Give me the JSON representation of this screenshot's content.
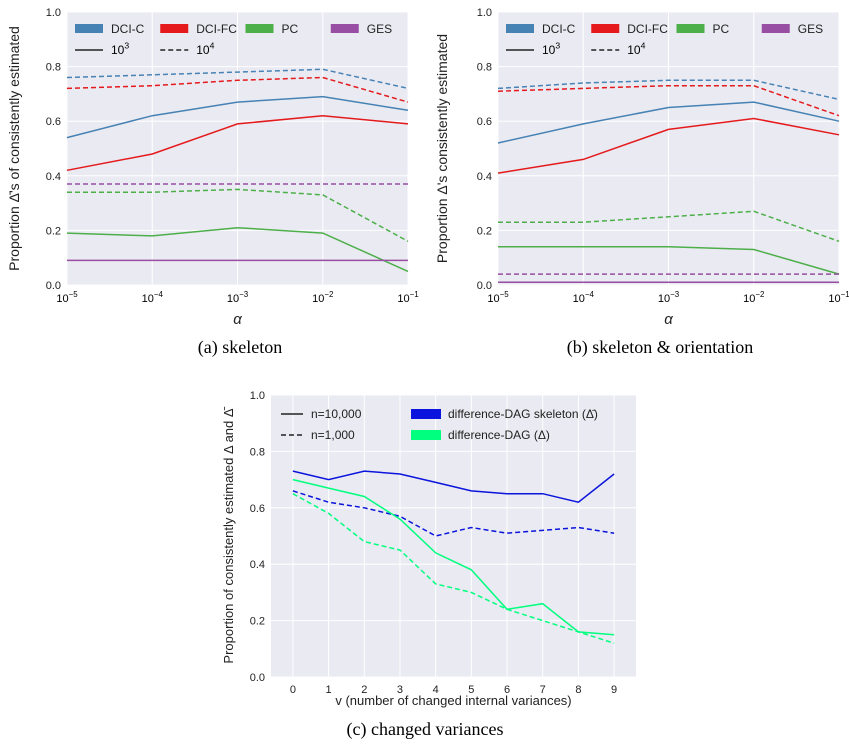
{
  "chart_data": [
    {
      "type": "line",
      "caption": "(a)  skeleton",
      "xlabel": "α",
      "ylabel": "Proportion Δ̄'s of consistently estimated",
      "x_scale": "log",
      "x": [
        1e-05,
        0.0001,
        0.001,
        0.01,
        0.1
      ],
      "xticks": [
        {
          "base": "10",
          "exp": "−5"
        },
        {
          "base": "10",
          "exp": "−4"
        },
        {
          "base": "10",
          "exp": "−3"
        },
        {
          "base": "10",
          "exp": "−2"
        },
        {
          "base": "10",
          "exp": "−1"
        }
      ],
      "ylim": [
        0,
        1
      ],
      "yticks": [
        "0.0",
        "0.2",
        "0.4",
        "0.6",
        "0.8",
        "1.0"
      ],
      "grid": true,
      "legend_position": "top",
      "legend": {
        "methods": [
          {
            "name": "DCI-C",
            "color": "#4682b4"
          },
          {
            "name": "DCI-FC",
            "color": "#e41a1c"
          },
          {
            "name": "PC",
            "color": "#4daf4a"
          },
          {
            "name": "GES",
            "color": "#984ea3"
          }
        ],
        "styles": [
          {
            "base": "10",
            "exp": "3",
            "dash": "solid"
          },
          {
            "base": "10",
            "exp": "4",
            "dash": "dashed"
          }
        ]
      },
      "series": [
        {
          "method": "DCI-C",
          "samples": "10^3",
          "dash": "solid",
          "color": "#4682b4",
          "values": [
            0.54,
            0.62,
            0.67,
            0.69,
            0.64
          ]
        },
        {
          "method": "DCI-C",
          "samples": "10^4",
          "dash": "dashed",
          "color": "#4682b4",
          "values": [
            0.76,
            0.77,
            0.78,
            0.79,
            0.72
          ]
        },
        {
          "method": "DCI-FC",
          "samples": "10^3",
          "dash": "solid",
          "color": "#e41a1c",
          "values": [
            0.42,
            0.48,
            0.59,
            0.62,
            0.59
          ]
        },
        {
          "method": "DCI-FC",
          "samples": "10^4",
          "dash": "dashed",
          "color": "#e41a1c",
          "values": [
            0.72,
            0.73,
            0.75,
            0.76,
            0.67
          ]
        },
        {
          "method": "PC",
          "samples": "10^3",
          "dash": "solid",
          "color": "#4daf4a",
          "values": [
            0.19,
            0.18,
            0.21,
            0.19,
            0.05
          ]
        },
        {
          "method": "PC",
          "samples": "10^4",
          "dash": "dashed",
          "color": "#4daf4a",
          "values": [
            0.34,
            0.34,
            0.35,
            0.33,
            0.16
          ]
        },
        {
          "method": "GES",
          "samples": "10^3",
          "dash": "solid",
          "color": "#984ea3",
          "values": [
            0.09,
            0.09,
            0.09,
            0.09,
            0.09
          ]
        },
        {
          "method": "GES",
          "samples": "10^4",
          "dash": "dashed",
          "color": "#984ea3",
          "values": [
            0.37,
            0.37,
            0.37,
            0.37,
            0.37
          ]
        }
      ]
    },
    {
      "type": "line",
      "caption": "(b)  skeleton & orientation",
      "xlabel": "α",
      "ylabel": "Proportion Δ's consistently estimated",
      "x_scale": "log",
      "x": [
        1e-05,
        0.0001,
        0.001,
        0.01,
        0.1
      ],
      "xticks": [
        {
          "base": "10",
          "exp": "−5"
        },
        {
          "base": "10",
          "exp": "−4"
        },
        {
          "base": "10",
          "exp": "−3"
        },
        {
          "base": "10",
          "exp": "−2"
        },
        {
          "base": "10",
          "exp": "−1"
        }
      ],
      "ylim": [
        0,
        1
      ],
      "yticks": [
        "0.0",
        "0.2",
        "0.4",
        "0.6",
        "0.8",
        "1.0"
      ],
      "grid": true,
      "legend_position": "top",
      "legend": {
        "methods": [
          {
            "name": "DCI-C",
            "color": "#4682b4"
          },
          {
            "name": "DCI-FC",
            "color": "#e41a1c"
          },
          {
            "name": "PC",
            "color": "#4daf4a"
          },
          {
            "name": "GES",
            "color": "#984ea3"
          }
        ],
        "styles": [
          {
            "base": "10",
            "exp": "3",
            "dash": "solid"
          },
          {
            "base": "10",
            "exp": "4",
            "dash": "dashed"
          }
        ]
      },
      "series": [
        {
          "method": "DCI-C",
          "samples": "10^3",
          "dash": "solid",
          "color": "#4682b4",
          "values": [
            0.52,
            0.59,
            0.65,
            0.67,
            0.6
          ]
        },
        {
          "method": "DCI-C",
          "samples": "10^4",
          "dash": "dashed",
          "color": "#4682b4",
          "values": [
            0.72,
            0.74,
            0.75,
            0.75,
            0.68
          ]
        },
        {
          "method": "DCI-FC",
          "samples": "10^3",
          "dash": "solid",
          "color": "#e41a1c",
          "values": [
            0.41,
            0.46,
            0.57,
            0.61,
            0.55
          ]
        },
        {
          "method": "DCI-FC",
          "samples": "10^4",
          "dash": "dashed",
          "color": "#e41a1c",
          "values": [
            0.71,
            0.72,
            0.73,
            0.73,
            0.62
          ]
        },
        {
          "method": "PC",
          "samples": "10^3",
          "dash": "solid",
          "color": "#4daf4a",
          "values": [
            0.14,
            0.14,
            0.14,
            0.13,
            0.04
          ]
        },
        {
          "method": "PC",
          "samples": "10^4",
          "dash": "dashed",
          "color": "#4daf4a",
          "values": [
            0.23,
            0.23,
            0.25,
            0.27,
            0.16
          ]
        },
        {
          "method": "GES",
          "samples": "10^3",
          "dash": "solid",
          "color": "#984ea3",
          "values": [
            0.01,
            0.01,
            0.01,
            0.01,
            0.01
          ]
        },
        {
          "method": "GES",
          "samples": "10^4",
          "dash": "dashed",
          "color": "#984ea3",
          "values": [
            0.04,
            0.04,
            0.04,
            0.04,
            0.04
          ]
        }
      ]
    },
    {
      "type": "line",
      "caption": "(c)  changed variances",
      "xlabel": "v (number of changed internal variances)",
      "ylabel": "Proportion of consistently estimated Δ and Δ̄",
      "x": [
        0,
        1,
        2,
        3,
        4,
        5,
        6,
        7,
        8,
        9
      ],
      "xticks": [
        "0",
        "1",
        "2",
        "3",
        "4",
        "5",
        "6",
        "7",
        "8",
        "9"
      ],
      "ylim": [
        0,
        1
      ],
      "yticks": [
        "0.0",
        "0.2",
        "0.4",
        "0.6",
        "0.8",
        "1.0"
      ],
      "grid": true,
      "legend_position": "top",
      "legend": {
        "styles": [
          {
            "label": "n=10,000",
            "dash": "solid"
          },
          {
            "label": "n=1,000",
            "dash": "dashed"
          }
        ],
        "methods": [
          {
            "name": "difference-DAG skeleton (Δ̄)",
            "color": "#0a14dc"
          },
          {
            "name": "difference-DAG (Δ)",
            "color": "#00ff7f"
          }
        ]
      },
      "series": [
        {
          "method": "difference-DAG skeleton (Δ̄)",
          "samples": "n=10,000",
          "dash": "solid",
          "color": "#0a14dc",
          "values": [
            0.73,
            0.7,
            0.73,
            0.72,
            0.69,
            0.66,
            0.65,
            0.65,
            0.62,
            0.72
          ]
        },
        {
          "method": "difference-DAG skeleton (Δ̄)",
          "samples": "n=1,000",
          "dash": "dashed",
          "color": "#0a14dc",
          "values": [
            0.66,
            0.62,
            0.6,
            0.57,
            0.5,
            0.53,
            0.51,
            0.52,
            0.53,
            0.51
          ]
        },
        {
          "method": "difference-DAG (Δ)",
          "samples": "n=10,000",
          "dash": "solid",
          "color": "#00ff7f",
          "values": [
            0.7,
            0.67,
            0.64,
            0.56,
            0.44,
            0.38,
            0.24,
            0.26,
            0.16,
            0.15
          ]
        },
        {
          "method": "difference-DAG (Δ)",
          "samples": "n=1,000",
          "dash": "dashed",
          "color": "#00ff7f",
          "values": [
            0.65,
            0.58,
            0.48,
            0.45,
            0.33,
            0.3,
            0.24,
            0.2,
            0.16,
            0.12
          ]
        }
      ]
    }
  ]
}
